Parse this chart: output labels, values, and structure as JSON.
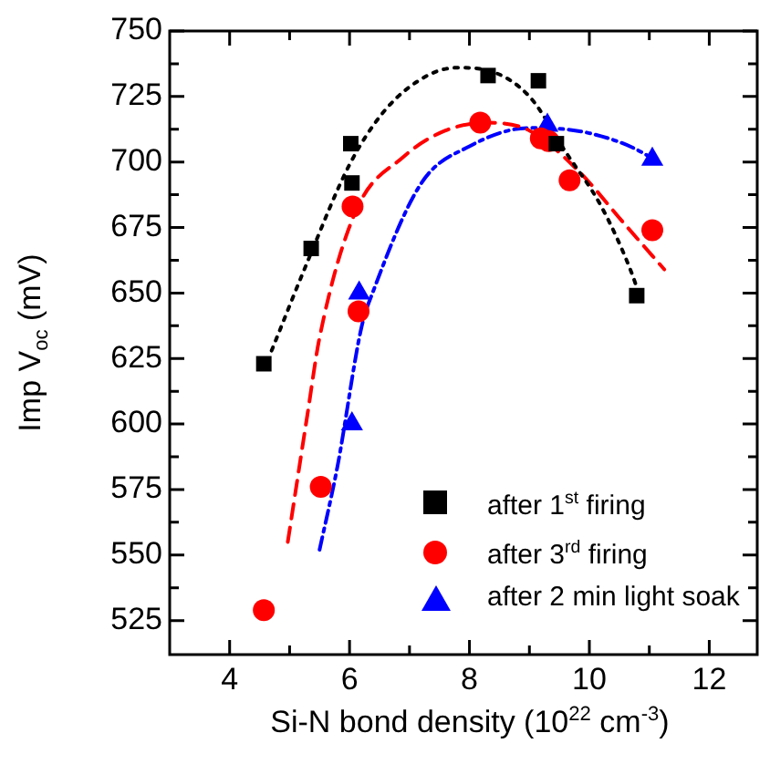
{
  "chart_data": {
    "type": "scatter",
    "xlabel": "Si-N bond density (10$^{22}$ cm$^{-3}$)",
    "ylabel": "Imp V$_{oc}$ (mV)",
    "xlim": [
      3,
      12.8
    ],
    "ylim": [
      512,
      750
    ],
    "xticks": [
      4,
      {
        "value": 5,
        "label": null
      },
      6,
      {
        "value": 7,
        "label": null
      },
      8,
      {
        "value": 9,
        "label": null
      },
      10,
      {
        "value": 11,
        "label": null
      },
      12
    ],
    "yticks": [
      525,
      {
        "value": 537.5,
        "label": null
      },
      550,
      {
        "value": 562.5,
        "label": null
      },
      575,
      {
        "value": 587.5,
        "label": null
      },
      600,
      {
        "value": 612.5,
        "label": null
      },
      625,
      {
        "value": 637.5,
        "label": null
      },
      650,
      {
        "value": 662.5,
        "label": null
      },
      675,
      {
        "value": 687.5,
        "label": null
      },
      700,
      {
        "value": 712.5,
        "label": null
      },
      725,
      {
        "value": 737.5,
        "label": null
      },
      750
    ],
    "legend": "bottom right",
    "grid": false,
    "series": [
      {
        "name": "after 1$^{st}$ firing",
        "type": "scatter",
        "marker": "square",
        "color": "#000000",
        "x": [
          4.57,
          5.36,
          6.02,
          6.04,
          8.31,
          9.15,
          9.45,
          10.79
        ],
        "values": [
          623,
          667,
          707,
          692,
          733,
          731,
          707,
          649
        ]
      },
      {
        "name": "after 3$^{rd}$ firing",
        "type": "scatter",
        "marker": "circle",
        "color": "#ff0000",
        "x": [
          4.57,
          5.52,
          6.05,
          6.15,
          8.18,
          9.19,
          9.32,
          9.67,
          11.05
        ],
        "values": [
          529,
          576,
          683,
          643,
          715,
          709,
          708,
          693,
          674
        ]
      },
      {
        "name": "after 2 min light soak",
        "type": "scatter",
        "marker": "triangle",
        "color": "#0000ff",
        "x": [
          6.04,
          6.16,
          9.3,
          11.05
        ],
        "values": [
          600,
          650,
          714,
          701
        ]
      },
      {
        "type": "line",
        "line_style": "dotted",
        "color": "#000000",
        "x": [
          4.7,
          5.3,
          6.0,
          6.6,
          7.3,
          7.8,
          8.3,
          9.0,
          9.6,
          10.2,
          10.7,
          10.85
        ],
        "values": [
          628,
          662,
          699,
          720,
          733,
          736,
          735,
          725,
          704,
          683,
          658,
          648
        ]
      },
      {
        "type": "line",
        "line_style": "dashed",
        "color": "#ff0000",
        "x": [
          4.97,
          5.3,
          5.5,
          6.1,
          6.9,
          7.6,
          8.3,
          9.0,
          9.8,
          10.6,
          11.25
        ],
        "values": [
          555,
          604,
          633,
          681,
          702,
          712,
          715,
          712,
          697,
          676,
          659
        ]
      },
      {
        "type": "line",
        "line_style": "dashdot",
        "color": "#0000ff",
        "x": [
          5.5,
          5.8,
          6.2,
          6.4,
          7.2,
          8.0,
          9.0,
          10.0,
          11.0,
          11.1
        ],
        "values": [
          552,
          584,
          637,
          651,
          692,
          706,
          713,
          711,
          702,
          700
        ]
      }
    ]
  }
}
